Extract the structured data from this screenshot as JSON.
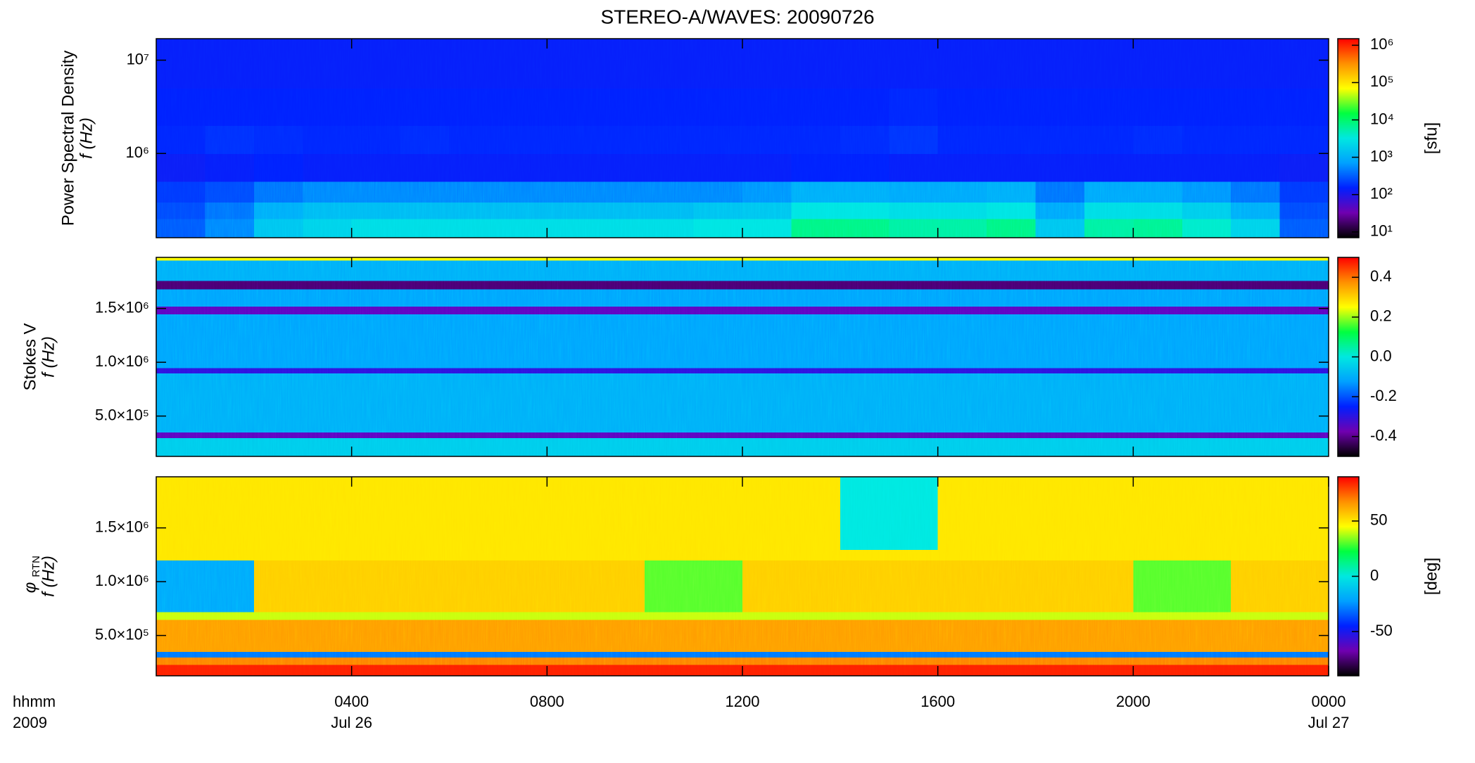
{
  "chart_data": [
    {
      "type": "spectrogram",
      "title": "STEREO-A/WAVES: 20090726",
      "ylabel": [
        "Power Spectral Density",
        "f (Hz)"
      ],
      "ylog": true,
      "ylim": [
        125000,
        17000000
      ],
      "yticks": [
        {
          "value": 1000000,
          "label": "10⁶"
        },
        {
          "value": 10000000,
          "label": "10⁷"
        }
      ],
      "xlim": [
        0,
        24
      ],
      "xticks": [
        4,
        8,
        12,
        16,
        20
      ],
      "xbins": [
        0,
        1,
        2,
        3,
        4,
        5,
        6,
        7,
        8,
        9,
        10,
        11,
        12,
        13,
        14,
        15,
        16,
        17,
        18,
        19,
        20,
        21,
        22,
        23,
        24
      ],
      "ybins": [
        125000,
        200000,
        300000,
        500000,
        1000000,
        2000000,
        5000000,
        17000000
      ],
      "z": [
        [
          300,
          500,
          1500,
          2000,
          2500,
          2500,
          2500,
          2500,
          2500,
          2500,
          2500,
          3000,
          3000,
          8000,
          8000,
          6000,
          6000,
          8000,
          1500,
          6000,
          7000,
          4000,
          2000,
          300
        ],
        [
          250,
          400,
          900,
          1200,
          1200,
          1200,
          1200,
          1200,
          1200,
          1200,
          1200,
          1400,
          1500,
          3000,
          3000,
          2500,
          2500,
          3000,
          800,
          2500,
          2500,
          1800,
          900,
          250
        ],
        [
          200,
          250,
          400,
          500,
          500,
          500,
          500,
          500,
          500,
          500,
          500,
          500,
          600,
          900,
          900,
          800,
          800,
          900,
          400,
          800,
          800,
          600,
          400,
          200
        ],
        [
          130,
          140,
          150,
          140,
          140,
          140,
          140,
          140,
          140,
          140,
          140,
          140,
          140,
          150,
          150,
          140,
          140,
          140,
          140,
          140,
          140,
          140,
          140,
          130
        ],
        [
          160,
          180,
          170,
          160,
          160,
          170,
          160,
          160,
          160,
          160,
          160,
          160,
          160,
          160,
          170,
          190,
          160,
          160,
          160,
          160,
          170,
          160,
          160,
          160
        ],
        [
          150,
          150,
          150,
          150,
          150,
          150,
          150,
          150,
          150,
          150,
          150,
          150,
          150,
          150,
          150,
          160,
          150,
          150,
          150,
          150,
          150,
          150,
          150,
          150
        ],
        [
          140,
          140,
          140,
          140,
          140,
          140,
          140,
          140,
          140,
          140,
          140,
          140,
          140,
          140,
          140,
          140,
          140,
          140,
          140,
          140,
          140,
          140,
          140,
          140
        ]
      ],
      "colormap": [
        "#000000",
        "#7000b0",
        "#0020ff",
        "#00a0ff",
        "#00e8e0",
        "#00ff40",
        "#ffff00",
        "#ff9000",
        "#ff0000"
      ],
      "colorbar": {
        "log": true,
        "lim": [
          7,
          1500000
        ],
        "label": "[sfu]",
        "ticks": [
          {
            "value": 10,
            "label": "10¹"
          },
          {
            "value": 100,
            "label": "10²"
          },
          {
            "value": 1000,
            "label": "10³"
          },
          {
            "value": 10000,
            "label": "10⁴"
          },
          {
            "value": 100000,
            "label": "10⁵"
          },
          {
            "value": 1000000,
            "label": "10⁶"
          }
        ]
      }
    },
    {
      "type": "spectrogram",
      "ylabel": [
        "Stokes V",
        "f (Hz)"
      ],
      "ylog": false,
      "ylim": [
        125000,
        1975000
      ],
      "yticks": [
        {
          "value": 500000,
          "label": "5.0×10⁵"
        },
        {
          "value": 1000000,
          "label": "1.0×10⁶"
        },
        {
          "value": 1500000,
          "label": "1.5×10⁶"
        }
      ],
      "xlim": [
        0,
        24
      ],
      "xticks": [
        4,
        8,
        12,
        16,
        20
      ],
      "xbins": [
        0,
        2,
        4,
        6,
        8,
        10,
        12,
        14,
        16,
        18,
        20,
        22,
        24
      ],
      "ybins": [
        125000,
        300000,
        350000,
        900000,
        950000,
        1450000,
        1520000,
        1680000,
        1760000,
        1950000,
        1975000
      ],
      "z": [
        [
          -0.05,
          -0.05,
          -0.05,
          -0.05,
          -0.05,
          -0.05,
          -0.05,
          -0.05,
          -0.05,
          -0.05,
          -0.05,
          -0.05
        ],
        [
          -0.35,
          -0.35,
          -0.35,
          -0.35,
          -0.35,
          -0.35,
          -0.35,
          -0.35,
          -0.35,
          -0.35,
          -0.35,
          -0.35
        ],
        [
          -0.1,
          -0.1,
          -0.1,
          -0.1,
          -0.1,
          -0.1,
          -0.1,
          -0.1,
          -0.1,
          -0.1,
          -0.1,
          -0.1
        ],
        [
          -0.3,
          -0.3,
          -0.3,
          -0.3,
          -0.3,
          -0.3,
          -0.3,
          -0.3,
          -0.3,
          -0.3,
          -0.3,
          -0.3
        ],
        [
          -0.12,
          -0.12,
          -0.12,
          -0.12,
          -0.12,
          -0.12,
          -0.12,
          -0.12,
          -0.12,
          -0.12,
          -0.12,
          -0.12
        ],
        [
          -0.35,
          -0.35,
          -0.35,
          -0.35,
          -0.35,
          -0.35,
          -0.35,
          -0.35,
          -0.35,
          -0.35,
          -0.35,
          -0.35
        ],
        [
          -0.12,
          -0.12,
          -0.12,
          -0.12,
          -0.12,
          -0.12,
          -0.12,
          -0.12,
          -0.12,
          -0.12,
          -0.12,
          -0.12
        ],
        [
          -0.42,
          -0.42,
          -0.42,
          -0.42,
          -0.42,
          -0.42,
          -0.42,
          -0.42,
          -0.42,
          -0.42,
          -0.42,
          -0.42
        ],
        [
          -0.1,
          -0.1,
          -0.1,
          -0.1,
          -0.1,
          -0.1,
          -0.1,
          -0.1,
          -0.1,
          -0.1,
          -0.1,
          -0.1
        ],
        [
          0.25,
          0.25,
          0.25,
          0.25,
          0.25,
          0.25,
          0.25,
          0.25,
          0.25,
          0.25,
          0.25,
          0.25
        ]
      ],
      "colormap": [
        "#000000",
        "#7000b0",
        "#0020ff",
        "#00a0ff",
        "#00e8e0",
        "#00ff40",
        "#ffff00",
        "#ff9000",
        "#ff0000"
      ],
      "colorbar": {
        "log": false,
        "lim": [
          -0.5,
          0.5
        ],
        "ticks": [
          -0.4,
          -0.2,
          {
            "value": 0,
            "label": "0.0"
          },
          0.2,
          0.4
        ]
      }
    },
    {
      "type": "spectrogram",
      "ylabel": [
        "φ",
        "f (Hz)"
      ],
      "ylabel_subscript": "RTN",
      "ylog": false,
      "ylim": [
        125000,
        1975000
      ],
      "yticks": [
        {
          "value": 500000,
          "label": "5.0×10⁵"
        },
        {
          "value": 1000000,
          "label": "1.0×10⁶"
        },
        {
          "value": 1500000,
          "label": "1.5×10⁶"
        }
      ],
      "xlim": [
        0,
        24
      ],
      "xticks": [
        {
          "value": 4,
          "label": "0400"
        },
        {
          "value": 8,
          "label": "0800"
        },
        {
          "value": 12,
          "label": "1200"
        },
        {
          "value": 16,
          "label": "1600"
        },
        {
          "value": 20,
          "label": "2000"
        },
        {
          "value": 24,
          "label": "0000"
        }
      ],
      "date_labels": [
        {
          "value": 4,
          "label": "Jul 26"
        },
        {
          "value": 24,
          "label": "Jul 27"
        }
      ],
      "x_label_lines": [
        "hhmm",
        "2009"
      ],
      "xbins": [
        0,
        2,
        4,
        6,
        8,
        10,
        12,
        14,
        16,
        18,
        20,
        22,
        24
      ],
      "ybins": [
        125000,
        230000,
        300000,
        350000,
        650000,
        720000,
        1200000,
        1300000,
        1975000
      ],
      "z": [
        [
          85,
          85,
          85,
          85,
          85,
          85,
          85,
          85,
          85,
          85,
          85,
          85
        ],
        [
          70,
          70,
          70,
          70,
          70,
          70,
          70,
          70,
          70,
          70,
          70,
          70
        ],
        [
          -30,
          -30,
          -30,
          -30,
          -30,
          -30,
          -30,
          -30,
          -30,
          -30,
          -30,
          -30
        ],
        [
          65,
          65,
          65,
          65,
          65,
          65,
          65,
          65,
          65,
          65,
          65,
          65
        ],
        [
          40,
          40,
          40,
          40,
          40,
          40,
          40,
          40,
          40,
          40,
          40,
          40
        ],
        [
          -20,
          55,
          55,
          55,
          55,
          30,
          55,
          55,
          55,
          55,
          30,
          55
        ],
        [
          50,
          50,
          50,
          50,
          50,
          50,
          50,
          50,
          50,
          50,
          50,
          50
        ],
        [
          50,
          50,
          50,
          50,
          50,
          50,
          50,
          0,
          50,
          50,
          50,
          50
        ]
      ],
      "colormap": [
        "#000000",
        "#7000b0",
        "#0020ff",
        "#00a0ff",
        "#00e8e0",
        "#00ff40",
        "#ffff00",
        "#ff9000",
        "#ff0000"
      ],
      "colorbar": {
        "log": false,
        "lim": [
          -90,
          90
        ],
        "label": "[deg]",
        "ticks": [
          -50,
          0,
          50
        ]
      }
    }
  ]
}
